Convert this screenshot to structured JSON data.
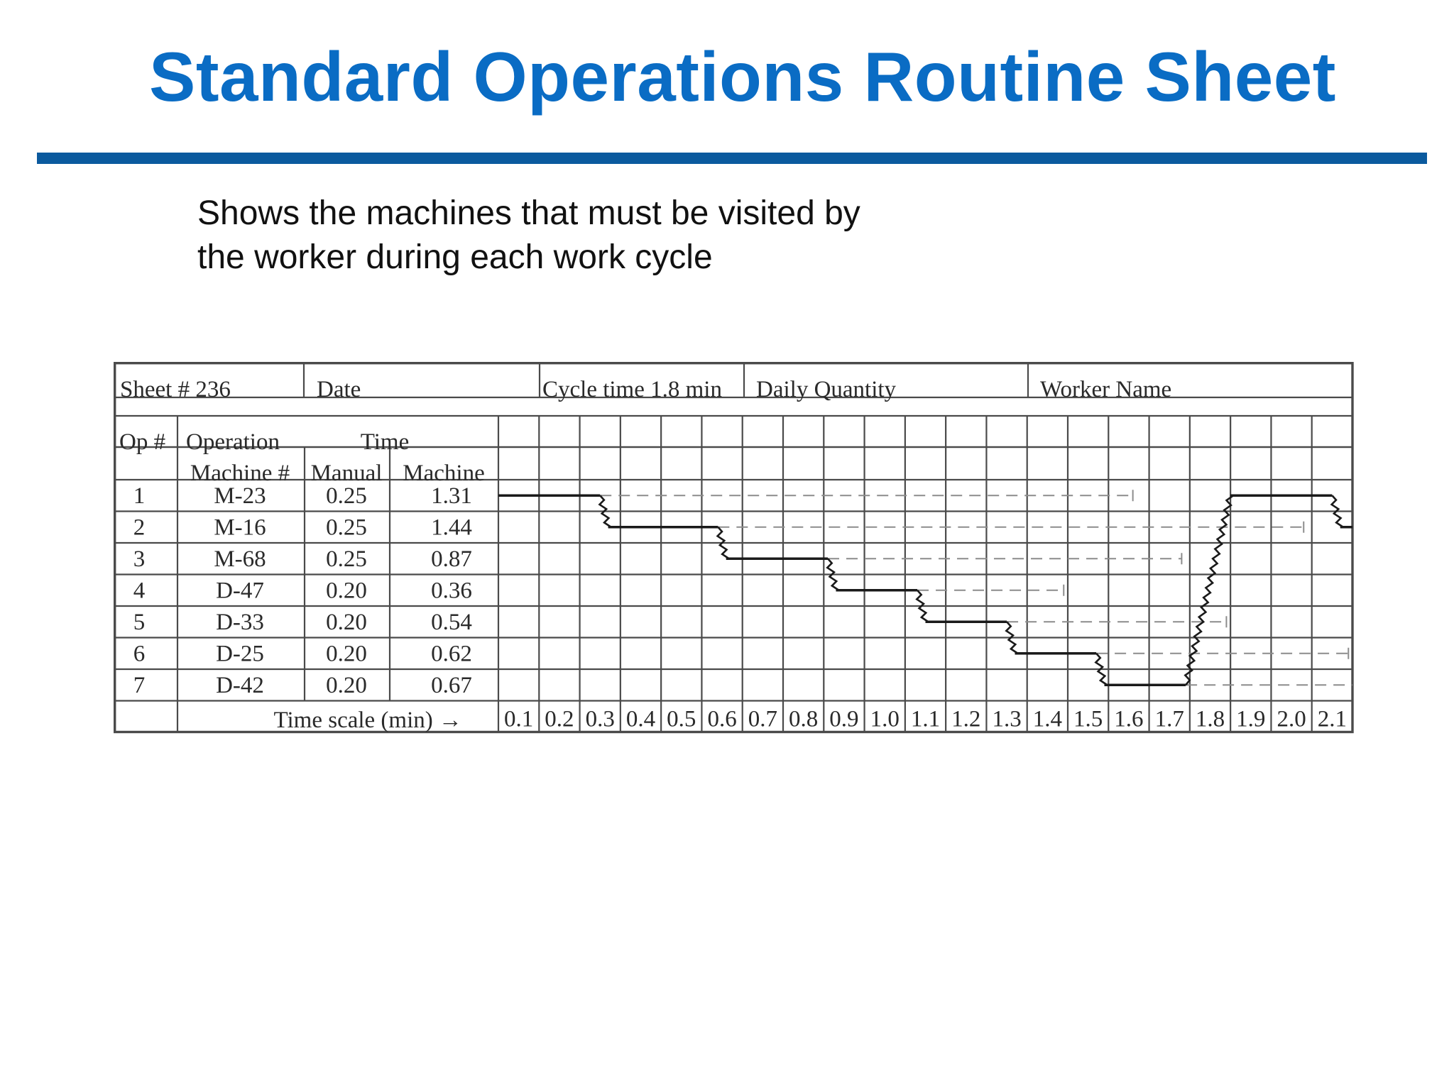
{
  "slide": {
    "title": "Standard Operations Routine Sheet",
    "subtitle_line1": "Shows the machines that must be visited by",
    "subtitle_line2": "the worker during each work cycle",
    "title_color": "#0a6cc4",
    "rule_color": "#0b5a9e"
  },
  "sheet": {
    "header": {
      "sheet_no": "Sheet # 236",
      "date": "Date",
      "cycle_time": "Cycle time 1.8 min",
      "daily_quantity": "Daily Quantity",
      "worker_name": "Worker Name"
    },
    "columns": {
      "op_no": "Op #",
      "operation": "Operation",
      "time": "Time",
      "machine_no": "Machine #",
      "manual": "Manual",
      "machine": "Machine"
    },
    "operations": [
      {
        "op": "1",
        "machine": "M-23",
        "manual": "0.25",
        "machine_time": "1.31"
      },
      {
        "op": "2",
        "machine": "M-16",
        "manual": "0.25",
        "machine_time": "1.44"
      },
      {
        "op": "3",
        "machine": "M-68",
        "manual": "0.25",
        "machine_time": "0.87"
      },
      {
        "op": "4",
        "machine": "D-47",
        "manual": "0.20",
        "machine_time": "0.36"
      },
      {
        "op": "5",
        "machine": "D-33",
        "manual": "0.20",
        "machine_time": "0.54"
      },
      {
        "op": "6",
        "machine": "D-25",
        "manual": "0.20",
        "machine_time": "0.62"
      },
      {
        "op": "7",
        "machine": "D-42",
        "manual": "0.20",
        "machine_time": "0.67"
      }
    ],
    "time_scale_label": "Time scale (min) →",
    "time_scale": [
      "0.1",
      "0.2",
      "0.3",
      "0.4",
      "0.5",
      "0.6",
      "0.7",
      "0.8",
      "0.9",
      "1.0",
      "1.1",
      "1.2",
      "1.3",
      "1.4",
      "1.5",
      "1.6",
      "1.7",
      "1.8",
      "1.9",
      "2.0",
      "2.1"
    ]
  }
}
